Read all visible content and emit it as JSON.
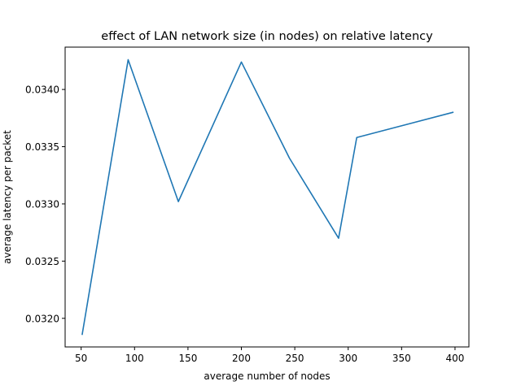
{
  "chart_data": {
    "type": "line",
    "title": "effect of LAN network size (in nodes) on relative latency",
    "xlabel": "average number of nodes",
    "ylabel": "average latency per packet",
    "xlim": [
      35,
      413
    ],
    "ylim": [
      0.03175,
      0.03437
    ],
    "xticks": [
      50,
      100,
      150,
      200,
      250,
      300,
      350,
      400
    ],
    "xtick_labels": [
      "50",
      "100",
      "150",
      "200",
      "250",
      "300",
      "350",
      "400"
    ],
    "yticks": [
      0.032,
      0.0325,
      0.033,
      0.0335,
      0.034
    ],
    "ytick_labels": [
      "0.0320",
      "0.0325",
      "0.0330",
      "0.0335",
      "0.0340"
    ],
    "grid": false,
    "series": [
      {
        "color": "#1f77b4",
        "x": [
          51,
          94,
          141,
          200,
          245,
          291,
          308,
          398
        ],
        "y": [
          0.03186,
          0.03426,
          0.03302,
          0.03424,
          0.0334,
          0.0327,
          0.03358,
          0.0338
        ]
      }
    ]
  }
}
